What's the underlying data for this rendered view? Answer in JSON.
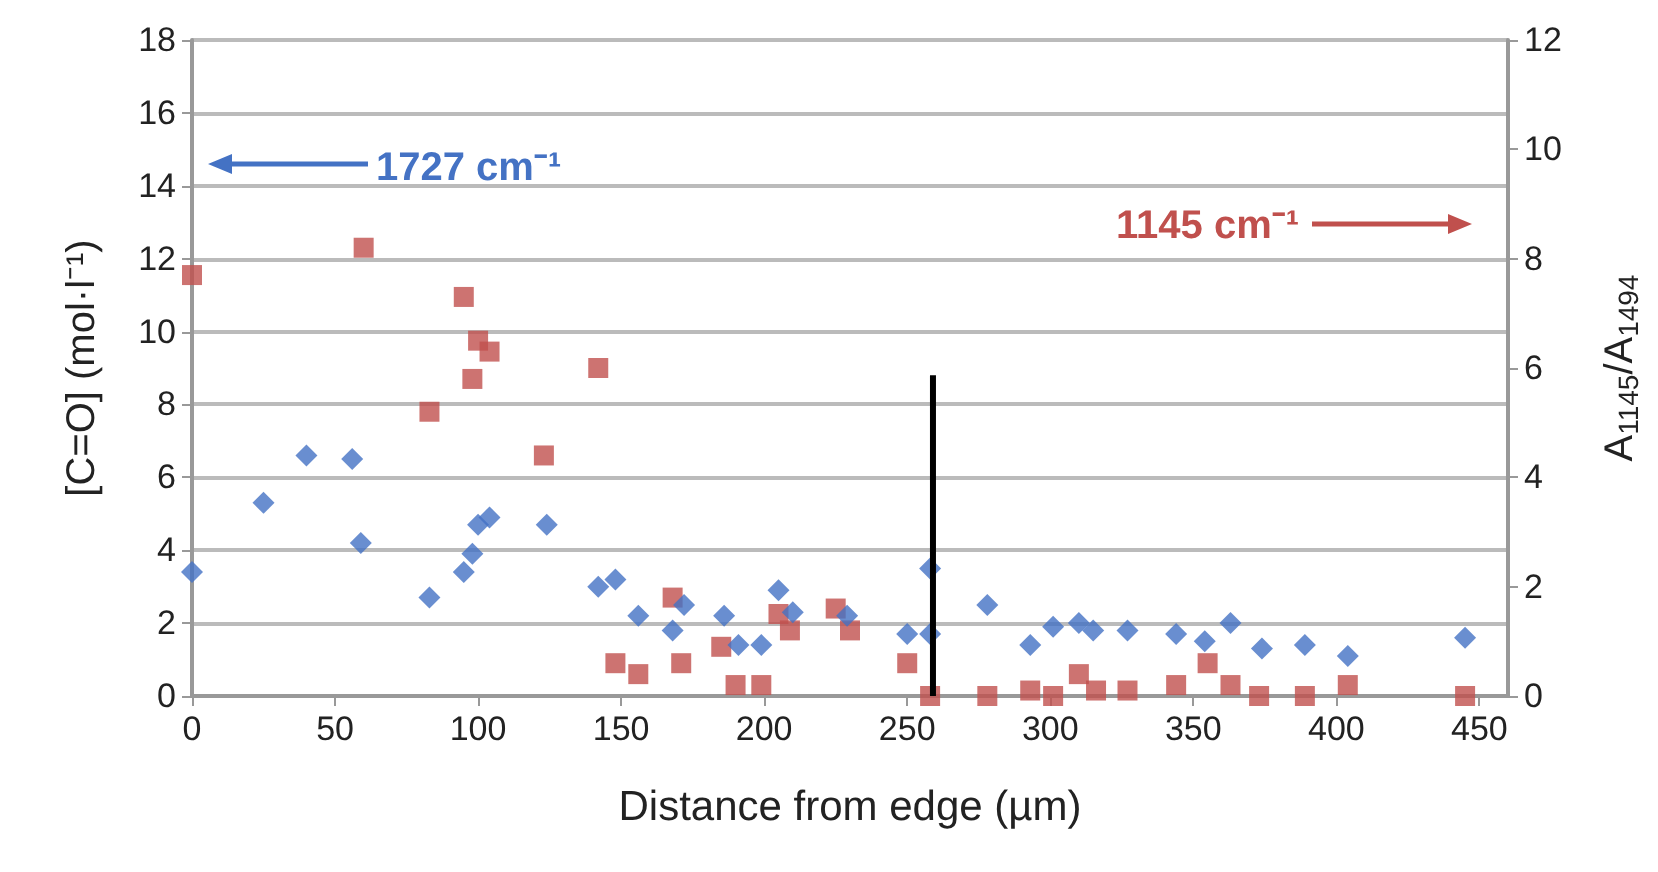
{
  "chart_data": {
    "type": "scatter",
    "xlabel": "Distance from edge (µm)",
    "ylabel": "[C=O] (mol·l⁻¹)",
    "y2label": "A$_{1145}$/A$_{1494}$",
    "annotations": [
      "1727 cm⁻¹",
      "1145 cm⁻¹"
    ],
    "xlim": [
      0,
      460
    ],
    "xticks": [
      0,
      50,
      100,
      150,
      200,
      250,
      300,
      350,
      400,
      450
    ],
    "ylim": [
      0,
      18
    ],
    "yticks": [
      0,
      2,
      4,
      6,
      8,
      10,
      12,
      14,
      16,
      18
    ],
    "y2lim": [
      0,
      12
    ],
    "y2ticks": [
      0,
      2,
      4,
      6,
      8,
      10,
      12
    ],
    "grid": "y",
    "series": [
      {
        "color": "#4472c4",
        "marker": "diamond",
        "x": [
          0,
          25,
          40,
          56,
          59,
          83,
          95,
          98,
          100,
          104,
          124,
          142,
          148,
          156,
          168,
          172,
          186,
          191,
          199,
          205,
          210,
          229,
          250,
          258,
          258,
          278,
          293,
          301,
          310,
          315,
          327,
          344,
          354,
          363,
          374,
          389,
          404,
          445
        ],
        "values": [
          3.4,
          5.3,
          6.6,
          6.5,
          4.2,
          2.7,
          3.4,
          3.9,
          4.7,
          4.9,
          4.7,
          3.0,
          3.2,
          2.2,
          1.8,
          2.5,
          2.2,
          1.4,
          1.4,
          2.9,
          2.3,
          2.2,
          1.7,
          3.5,
          1.7,
          2.5,
          1.4,
          1.9,
          2.0,
          1.8,
          1.8,
          1.7,
          1.5,
          2.0,
          1.3,
          1.4,
          1.1,
          1.6
        ]
      },
      {
        "color": "#c0504d",
        "marker": "square",
        "axis": "y2",
        "x": [
          0,
          60,
          83,
          95,
          98,
          100,
          104,
          123,
          142,
          148,
          156,
          168,
          171,
          185,
          190,
          199,
          205,
          209,
          225,
          230,
          250,
          258,
          278,
          293,
          301,
          310,
          316,
          327,
          344,
          355,
          363,
          373,
          389,
          404,
          445
        ],
        "values": [
          7.7,
          8.2,
          5.2,
          7.3,
          5.8,
          6.5,
          6.3,
          4.4,
          6.0,
          0.6,
          0.4,
          1.8,
          0.6,
          0.9,
          0.2,
          0.2,
          1.5,
          1.2,
          1.6,
          1.2,
          0.6,
          0,
          0,
          0.1,
          0,
          0.4,
          0.1,
          0.1,
          0.2,
          0.6,
          0.2,
          0,
          0,
          0.2,
          0
        ]
      },
      {
        "type": "line",
        "color": "#000000",
        "x": [
          259,
          259
        ],
        "values": [
          0,
          8.8
        ]
      }
    ]
  }
}
